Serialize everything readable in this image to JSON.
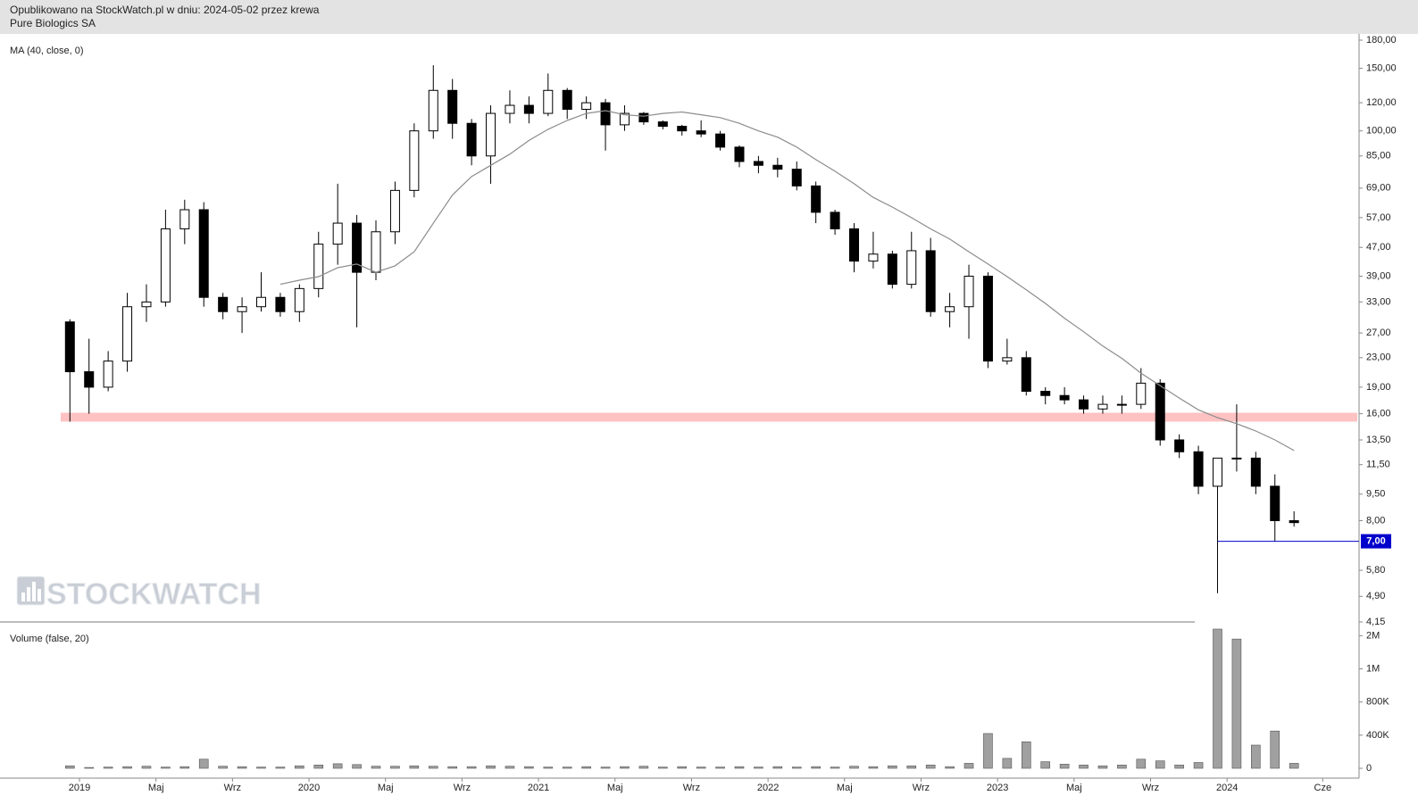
{
  "header": {
    "line1": "Opublikowano na StockWatch.pl w dniu: 2024-05-02 przez krewa",
    "line2": "Pure Biologics SA"
  },
  "watermark": "STOCKWATCH",
  "chart_data": [
    {
      "type": "candlestick",
      "x": [
        "2018-12",
        "2019-01",
        "2019-02",
        "2019-03",
        "2019-04",
        "2019-05",
        "2019-06",
        "2019-07",
        "2019-08",
        "2019-09",
        "2019-10",
        "2019-11",
        "2019-12",
        "2020-01",
        "2020-02",
        "2020-03",
        "2020-04",
        "2020-05",
        "2020-06",
        "2020-07",
        "2020-08",
        "2020-09",
        "2020-10",
        "2020-11",
        "2020-12",
        "2021-01",
        "2021-02",
        "2021-03",
        "2021-04",
        "2021-05",
        "2021-06",
        "2021-07",
        "2021-08",
        "2021-09",
        "2021-10",
        "2021-11",
        "2021-12",
        "2022-01",
        "2022-02",
        "2022-03",
        "2022-04",
        "2022-05",
        "2022-06",
        "2022-07",
        "2022-08",
        "2022-09",
        "2022-10",
        "2022-11",
        "2022-12",
        "2023-01",
        "2023-02",
        "2023-03",
        "2023-04",
        "2023-05",
        "2023-06",
        "2023-07",
        "2023-08",
        "2023-09",
        "2023-10",
        "2023-11",
        "2023-12",
        "2024-01",
        "2024-02",
        "2024-03",
        "2024-04"
      ],
      "open": [
        29,
        21,
        19,
        22.5,
        32,
        33,
        53,
        60,
        34,
        31,
        32,
        34,
        31,
        36,
        48,
        55,
        40,
        52,
        68,
        100,
        130,
        105,
        85,
        112,
        118,
        112,
        130,
        115,
        120,
        104,
        112,
        106,
        103,
        100,
        98,
        90,
        82,
        80,
        78,
        70,
        59,
        53,
        43,
        45,
        37,
        46,
        31,
        32,
        39,
        22.5,
        23,
        18.5,
        18,
        17.5,
        16.5,
        17,
        17,
        19.5,
        13.5,
        12.5,
        10,
        12,
        12,
        10,
        8
      ],
      "high": [
        29.5,
        26,
        24,
        35,
        37,
        60,
        64,
        63,
        35,
        34,
        40,
        35,
        37,
        52,
        71,
        58,
        56,
        72,
        105,
        153,
        140,
        108,
        118,
        130,
        125,
        145,
        132,
        125,
        123,
        118,
        113,
        107,
        104,
        107,
        100,
        91,
        85,
        84,
        82,
        72,
        60,
        55,
        52,
        46,
        52,
        50,
        35,
        42,
        40,
        26,
        24,
        19,
        19,
        18,
        18,
        18,
        21.5,
        20,
        14,
        13,
        11,
        17,
        12.5,
        10.8,
        8.5
      ],
      "low": [
        15.2,
        16,
        18.5,
        21,
        29,
        32,
        48,
        32,
        29.5,
        27,
        31,
        30,
        29,
        34,
        42,
        28,
        38,
        48,
        65,
        95,
        95,
        80,
        71,
        105,
        105,
        110,
        108,
        108,
        88,
        100,
        104,
        101,
        97,
        96,
        88,
        79,
        76,
        74,
        68,
        55,
        51,
        40,
        41,
        36,
        36,
        30,
        28,
        26,
        21.5,
        22,
        18,
        17,
        17,
        16,
        16,
        16,
        16.5,
        13,
        12,
        9.5,
        5,
        11,
        9.5,
        7,
        7.7
      ],
      "close": [
        21,
        19,
        22.5,
        32,
        33,
        53,
        60,
        34,
        31,
        32,
        34,
        31,
        36,
        48,
        55,
        40,
        52,
        68,
        100,
        130,
        105,
        85,
        112,
        118,
        112,
        130,
        115,
        120,
        104,
        112,
        106,
        103,
        100,
        98,
        90,
        82,
        80,
        78,
        70,
        59,
        53,
        43,
        45,
        37,
        46,
        31,
        32,
        39,
        22.5,
        23,
        18.5,
        18,
        17.5,
        16.5,
        17,
        17,
        19.5,
        13.5,
        12.5,
        10,
        12,
        12,
        10,
        8,
        7.9
      ],
      "up_color": "#ffffff",
      "down_color": "#000000",
      "series": [
        {
          "name": "MA (40, close, 0)",
          "color": "#8c8c8c",
          "values": [
            null,
            null,
            null,
            null,
            null,
            null,
            null,
            null,
            null,
            null,
            null,
            37,
            38,
            38.9,
            41.2,
            42.2,
            40,
            41.7,
            45.7,
            55,
            66,
            74.4,
            80,
            86,
            94,
            101,
            107,
            112,
            114,
            111,
            110,
            112,
            113,
            111,
            109,
            105,
            100,
            96,
            90,
            83,
            77,
            71,
            65,
            61,
            57,
            53,
            49.6,
            45.7,
            42.2,
            38.9,
            35.7,
            32.7,
            29.7,
            27.2,
            24.8,
            22.9,
            20.8,
            19.2,
            17.7,
            16.4,
            15.6,
            15,
            14.3,
            13.5,
            12.6
          ]
        }
      ],
      "log_scale": true,
      "ylim": [
        4.15,
        180
      ],
      "yticks": [
        {
          "value": 180,
          "label": "180,00"
        },
        {
          "value": 150,
          "label": "150,00"
        },
        {
          "value": 120,
          "label": "120,00"
        },
        {
          "value": 100,
          "label": "100,00"
        },
        {
          "value": 85,
          "label": "85,00"
        },
        {
          "value": 69,
          "label": "69,00"
        },
        {
          "value": 57,
          "label": "57,00"
        },
        {
          "value": 47,
          "label": "47,00"
        },
        {
          "value": 39,
          "label": "39,00"
        },
        {
          "value": 33,
          "label": "33,00"
        },
        {
          "value": 27,
          "label": "27,00"
        },
        {
          "value": 23,
          "label": "23,00"
        },
        {
          "value": 19,
          "label": "19,00"
        },
        {
          "value": 16,
          "label": "16,00"
        },
        {
          "value": 13.5,
          "label": "13,50"
        },
        {
          "value": 11.5,
          "label": "11,50"
        },
        {
          "value": 9.5,
          "label": "9,50"
        },
        {
          "value": 8,
          "label": "8,00"
        },
        {
          "value": 5.8,
          "label": "5,80"
        },
        {
          "value": 4.9,
          "label": "4,90"
        },
        {
          "value": 4.15,
          "label": "4,15"
        }
      ],
      "xticks": [
        {
          "value": "2019-01",
          "label": "2019"
        },
        {
          "value": "2019-05",
          "label": "Maj"
        },
        {
          "value": "2019-09",
          "label": "Wrz"
        },
        {
          "value": "2020-01",
          "label": "2020"
        },
        {
          "value": "2020-05",
          "label": "Maj"
        },
        {
          "value": "2020-09",
          "label": "Wrz"
        },
        {
          "value": "2021-01",
          "label": "2021"
        },
        {
          "value": "2021-05",
          "label": "Maj"
        },
        {
          "value": "2021-09",
          "label": "Wrz"
        },
        {
          "value": "2022-01",
          "label": "2022"
        },
        {
          "value": "2022-05",
          "label": "Maj"
        },
        {
          "value": "2022-09",
          "label": "Wrz"
        },
        {
          "value": "2023-01",
          "label": "2023"
        },
        {
          "value": "2023-05",
          "label": "Maj"
        },
        {
          "value": "2023-09",
          "label": "Wrz"
        },
        {
          "value": "2024-01",
          "label": "2024"
        },
        {
          "value": "2024-06",
          "label": "Cze"
        }
      ],
      "band": {
        "range": [
          15.2,
          16.1
        ],
        "color": "#ffc2c2"
      },
      "marker": {
        "value": 7,
        "label": "7,00",
        "color": "#0000cc"
      }
    },
    {
      "type": "bar",
      "title": "Volume (false, 20)",
      "color": "#a0a0a0",
      "values": [
        30000,
        10000,
        15000,
        20000,
        25000,
        15000,
        20000,
        110000,
        25000,
        20000,
        15000,
        15000,
        30000,
        40000,
        55000,
        45000,
        25000,
        25000,
        30000,
        25000,
        20000,
        20000,
        30000,
        25000,
        20000,
        15000,
        15000,
        20000,
        15000,
        20000,
        25000,
        15000,
        20000,
        15000,
        15000,
        20000,
        15000,
        20000,
        15000,
        20000,
        15000,
        25000,
        20000,
        30000,
        30000,
        40000,
        20000,
        60000,
        420000,
        120000,
        320000,
        80000,
        50000,
        40000,
        30000,
        40000,
        110000,
        90000,
        40000,
        70000,
        2200000,
        1900000,
        280000,
        450000,
        60000
      ],
      "ylim": [
        0,
        2200000
      ],
      "yticks": [
        0,
        {
          "value": 400000,
          "label": "400K"
        },
        {
          "value": 800000,
          "label": "800K"
        },
        {
          "value": 1000000,
          "label": "1M"
        },
        {
          "value": 2000000,
          "label": "2M"
        }
      ]
    }
  ]
}
